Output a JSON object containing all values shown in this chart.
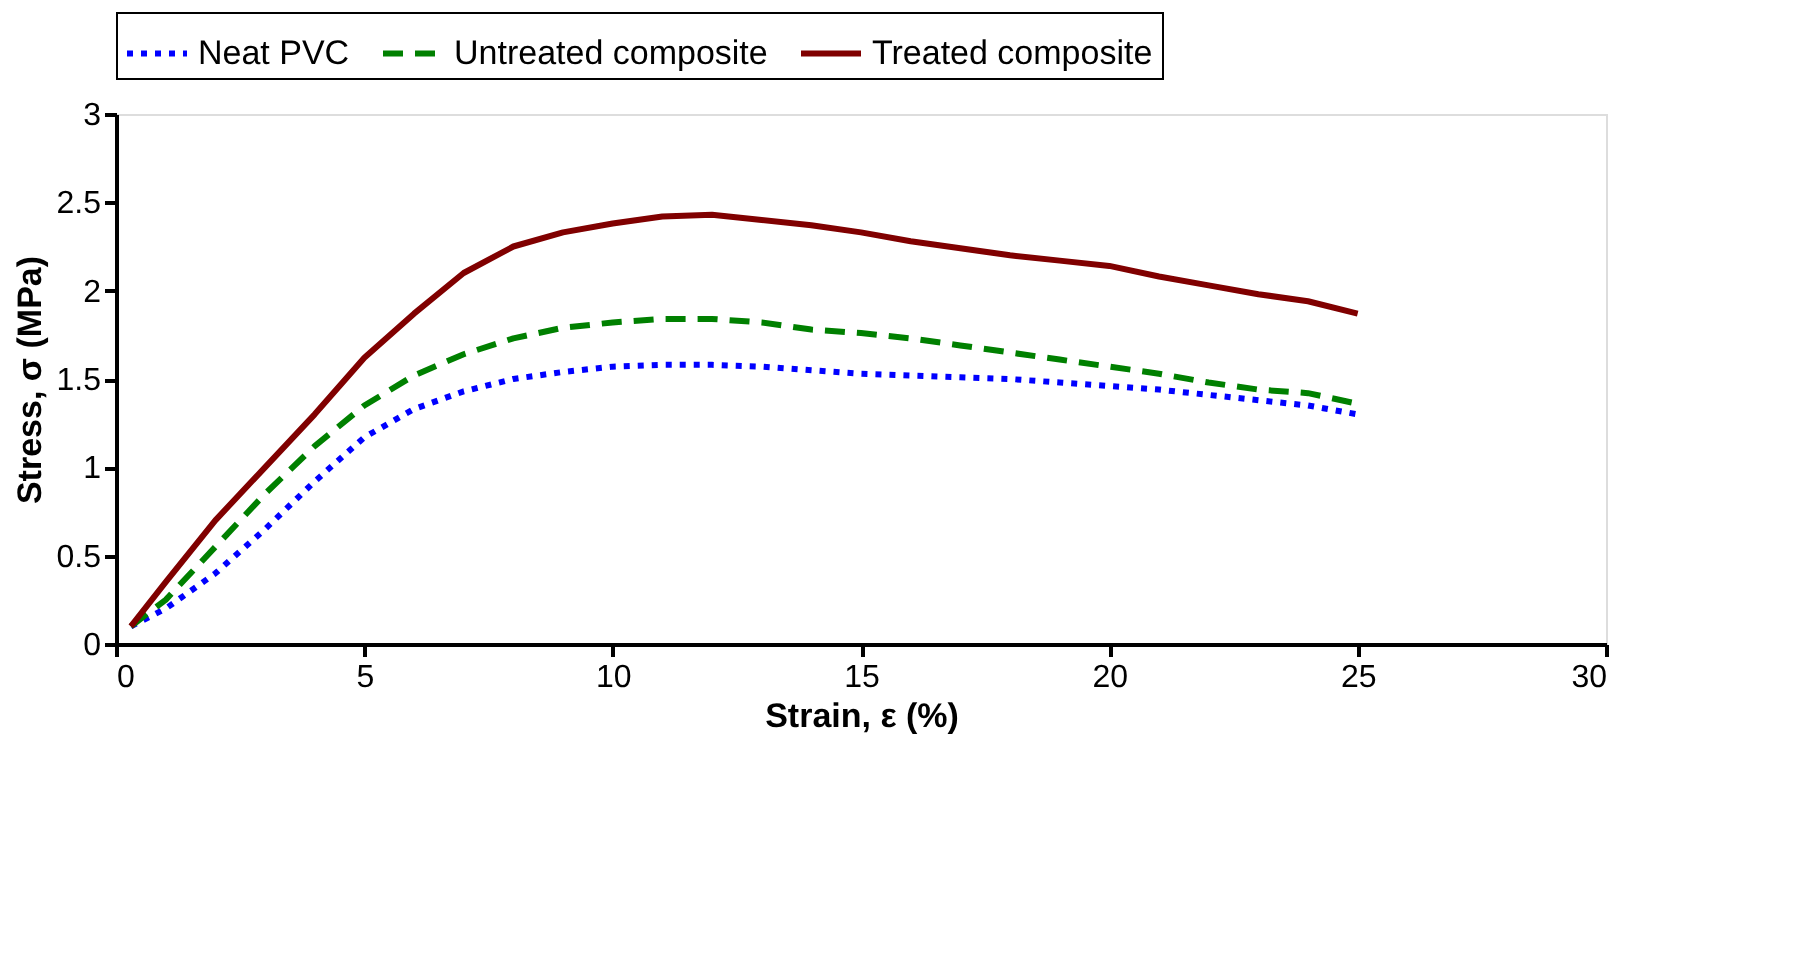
{
  "chart_data": {
    "type": "line",
    "xlabel": "Strain, ε (%)",
    "ylabel": "Stress, σ (MPa)",
    "xlim": [
      0,
      30
    ],
    "xticks": [
      0,
      5,
      10,
      15,
      20,
      25,
      30
    ],
    "ylim": [
      0,
      3
    ],
    "yticks": [
      0,
      0.5,
      1,
      1.5,
      2,
      2.5,
      3
    ],
    "grid": false,
    "legend": "top",
    "marker": "none",
    "x": [
      0.3,
      1,
      2,
      3,
      4,
      5,
      6,
      7,
      8,
      9,
      10,
      11,
      12,
      13,
      14,
      15,
      16,
      17,
      18,
      19,
      20,
      21,
      22,
      23,
      24,
      25
    ],
    "series": [
      {
        "name": "Neat PVC",
        "color": "#0000ff",
        "line_style": "dotted",
        "values": [
          0.1,
          0.2,
          0.4,
          0.65,
          0.92,
          1.17,
          1.33,
          1.43,
          1.5,
          1.54,
          1.57,
          1.58,
          1.58,
          1.57,
          1.55,
          1.53,
          1.52,
          1.51,
          1.5,
          1.48,
          1.46,
          1.44,
          1.41,
          1.38,
          1.35,
          1.3
        ]
      },
      {
        "name": "Untreated composite",
        "color": "#008000",
        "line_style": "dashed",
        "values": [
          0.1,
          0.25,
          0.55,
          0.85,
          1.12,
          1.35,
          1.52,
          1.64,
          1.73,
          1.79,
          1.82,
          1.84,
          1.84,
          1.82,
          1.78,
          1.76,
          1.73,
          1.69,
          1.65,
          1.61,
          1.57,
          1.53,
          1.48,
          1.44,
          1.42,
          1.36
        ]
      },
      {
        "name": "Treated composite",
        "color": "#800000",
        "line_style": "solid",
        "values": [
          0.1,
          0.35,
          0.7,
          1.0,
          1.3,
          1.62,
          1.87,
          2.1,
          2.25,
          2.33,
          2.38,
          2.42,
          2.43,
          2.4,
          2.37,
          2.33,
          2.28,
          2.24,
          2.2,
          2.17,
          2.14,
          2.08,
          2.03,
          1.98,
          1.94,
          1.87
        ]
      }
    ]
  }
}
